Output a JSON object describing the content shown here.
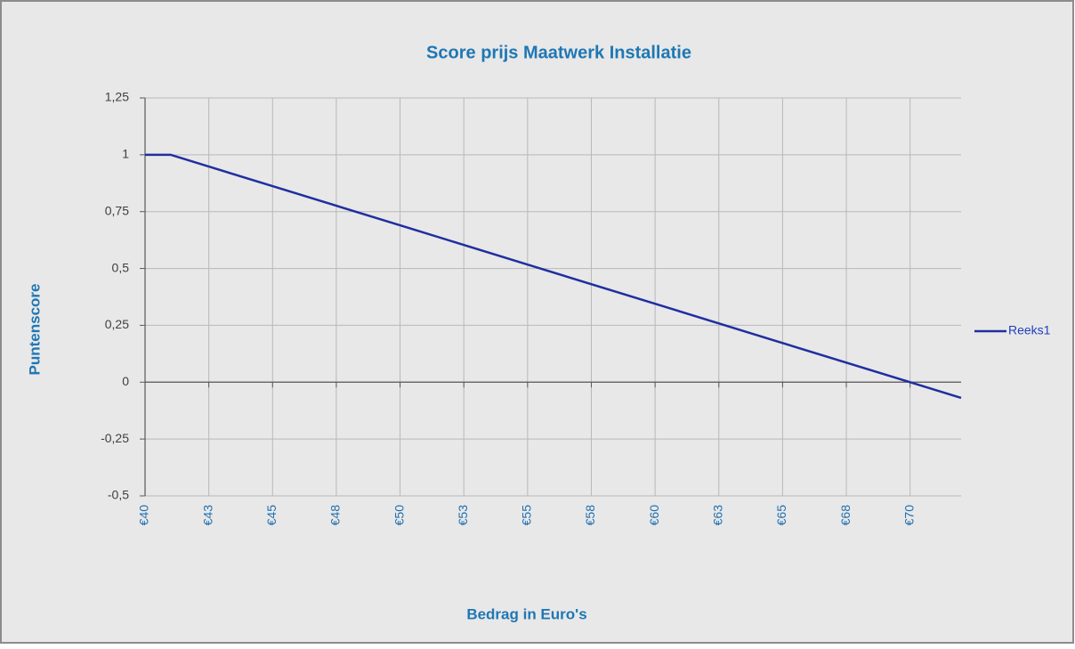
{
  "chart_data": {
    "type": "line",
    "title": "Score prijs Maatwerk Installatie",
    "x_label": "Bedrag in Euro's",
    "y_label": "Puntenscore",
    "x": [
      40,
      41,
      45,
      50,
      55,
      60,
      65,
      70,
      72
    ],
    "series": [
      {
        "name": "Reeks1",
        "color": "#1f2fa0",
        "values": [
          1,
          1,
          0.862,
          0.69,
          0.517,
          0.345,
          0.172,
          0,
          -0.069
        ]
      }
    ],
    "xlim": [
      40,
      72
    ],
    "xticks": [
      {
        "value": 40,
        "label": "€40"
      },
      {
        "value": 42.5,
        "label": "€43"
      },
      {
        "value": 45,
        "label": "€45"
      },
      {
        "value": 47.5,
        "label": "€48"
      },
      {
        "value": 50,
        "label": "€50"
      },
      {
        "value": 52.5,
        "label": "€53"
      },
      {
        "value": 55,
        "label": "€55"
      },
      {
        "value": 57.5,
        "label": "€58"
      },
      {
        "value": 60,
        "label": "€60"
      },
      {
        "value": 62.5,
        "label": "€63"
      },
      {
        "value": 65,
        "label": "€65"
      },
      {
        "value": 67.5,
        "label": "€68"
      },
      {
        "value": 70,
        "label": "€70"
      }
    ],
    "ylim": [
      -0.5,
      1.25
    ],
    "yticks": [
      {
        "value": 1.25,
        "label": "1,25"
      },
      1,
      {
        "value": 0.75,
        "label": "0,75"
      },
      {
        "value": 0.5,
        "label": "0,5"
      },
      {
        "value": 0.25,
        "label": "0,25"
      },
      0,
      {
        "value": -0.25,
        "label": "-0,25"
      },
      {
        "value": -0.5,
        "label": "-0,5"
      }
    ],
    "grid": true,
    "legend": "right"
  }
}
